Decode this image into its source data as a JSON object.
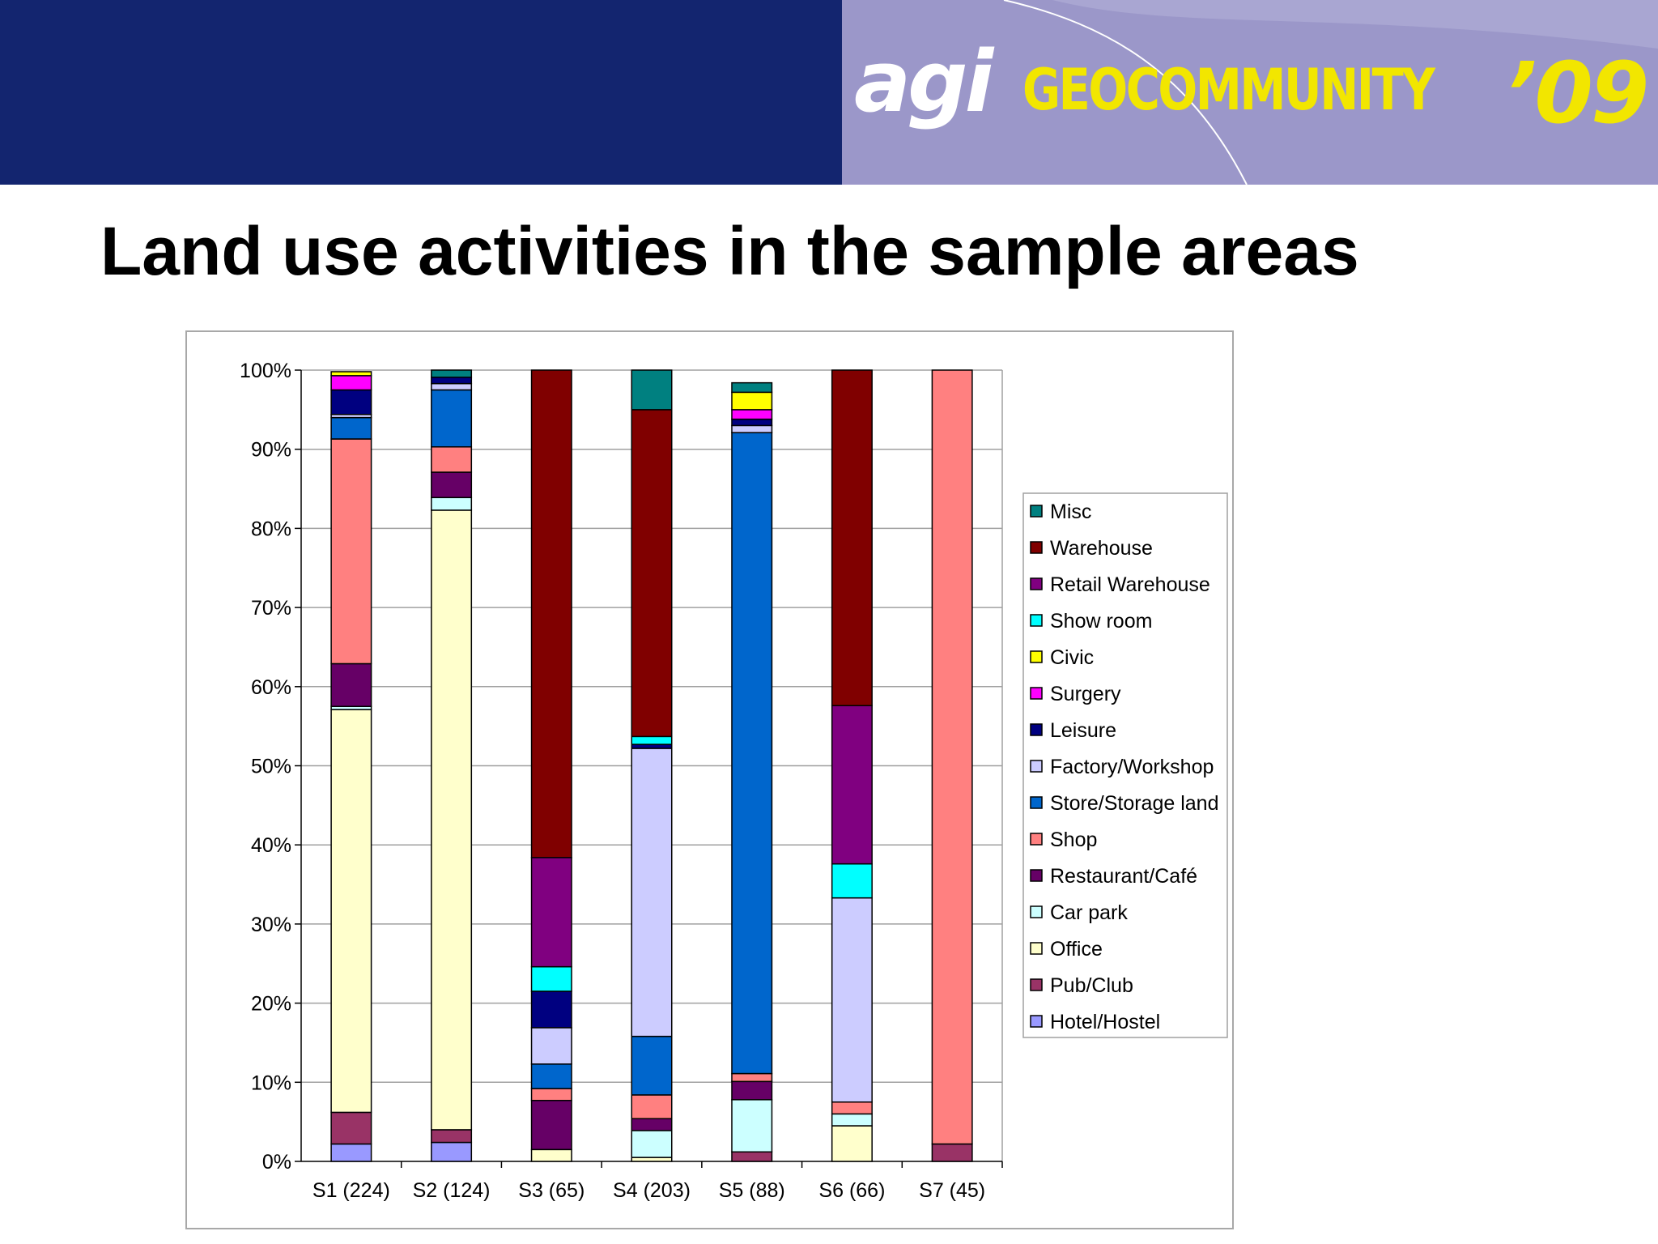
{
  "banner": {
    "logo_agi": "agi",
    "logo_geo": "GEOCOMMUNITY",
    "logo_year": "’09"
  },
  "slide": {
    "title": "Land use activities in the sample areas"
  },
  "colors": {
    "banner_dark": "#13256f",
    "banner_light": "#9b97c9",
    "logo_yellow": "#f2e600"
  },
  "chart_data": {
    "type": "bar",
    "stacked": true,
    "percent_stacked": true,
    "title": "",
    "xlabel": "",
    "ylabel": "",
    "ylim": [
      0,
      100
    ],
    "y_ticks": [
      "0%",
      "10%",
      "20%",
      "30%",
      "40%",
      "50%",
      "60%",
      "70%",
      "80%",
      "90%",
      "100%"
    ],
    "grid": true,
    "legend_position": "right",
    "categories": [
      "S1 (224)",
      "S2 (124)",
      "S3 (65)",
      "S4 (203)",
      "S5 (88)",
      "S6 (66)",
      "S7 (45)"
    ],
    "series": [
      {
        "name": "Hotel/Hostel",
        "color": "#9999ff",
        "values": [
          2.2,
          2.4,
          0,
          0,
          0,
          0,
          0
        ]
      },
      {
        "name": "Pub/Club",
        "color": "#993366",
        "values": [
          4.0,
          1.6,
          0,
          0,
          1.2,
          0,
          2.2
        ]
      },
      {
        "name": "Office",
        "color": "#ffffcc",
        "values": [
          50.9,
          78.3,
          1.5,
          0.5,
          0,
          4.5,
          0
        ]
      },
      {
        "name": "Car park",
        "color": "#ccffff",
        "values": [
          0.4,
          1.6,
          0,
          3.4,
          6.6,
          1.5,
          0
        ]
      },
      {
        "name": "Restaurant/Café",
        "color": "#660066",
        "values": [
          5.4,
          3.2,
          6.2,
          1.5,
          2.3,
          0,
          0
        ]
      },
      {
        "name": "Shop",
        "color": "#ff8080",
        "values": [
          28.4,
          3.2,
          1.5,
          3.0,
          1.0,
          1.5,
          97.8
        ]
      },
      {
        "name": "Store/Storage land",
        "color": "#0066cc",
        "values": [
          2.7,
          7.2,
          3.1,
          7.4,
          81.0,
          0,
          0
        ]
      },
      {
        "name": "Factory/Workshop",
        "color": "#ccccff",
        "values": [
          0.4,
          0.8,
          4.6,
          36.4,
          0.9,
          25.8,
          0
        ]
      },
      {
        "name": "Leisure",
        "color": "#000080",
        "values": [
          3.1,
          0.8,
          4.6,
          0.5,
          0.8,
          0,
          0
        ]
      },
      {
        "name": "Surgery",
        "color": "#ff00ff",
        "values": [
          1.8,
          0,
          0,
          0,
          1.2,
          0,
          0
        ]
      },
      {
        "name": "Civic",
        "color": "#ffff00",
        "values": [
          0.5,
          0,
          0,
          0,
          2.2,
          0,
          0
        ]
      },
      {
        "name": "Show room",
        "color": "#00ffff",
        "values": [
          0,
          0,
          3.1,
          1.0,
          0,
          4.3,
          0
        ]
      },
      {
        "name": "Retail Warehouse",
        "color": "#800080",
        "values": [
          0,
          0,
          13.8,
          0,
          0,
          20.0,
          0
        ]
      },
      {
        "name": "Warehouse",
        "color": "#800000",
        "values": [
          0,
          0,
          61.6,
          41.3,
          0,
          42.4,
          0
        ]
      },
      {
        "name": "Misc",
        "color": "#008080",
        "values": [
          0,
          0.9,
          0,
          5.0,
          1.2,
          0,
          0
        ]
      }
    ],
    "legend_order": [
      "Misc",
      "Warehouse",
      "Retail Warehouse",
      "Show room",
      "Civic",
      "Surgery",
      "Leisure",
      "Factory/Workshop",
      "Store/Storage land",
      "Shop",
      "Restaurant/Café",
      "Car park",
      "Office",
      "Pub/Club",
      "Hotel/Hostel"
    ]
  }
}
